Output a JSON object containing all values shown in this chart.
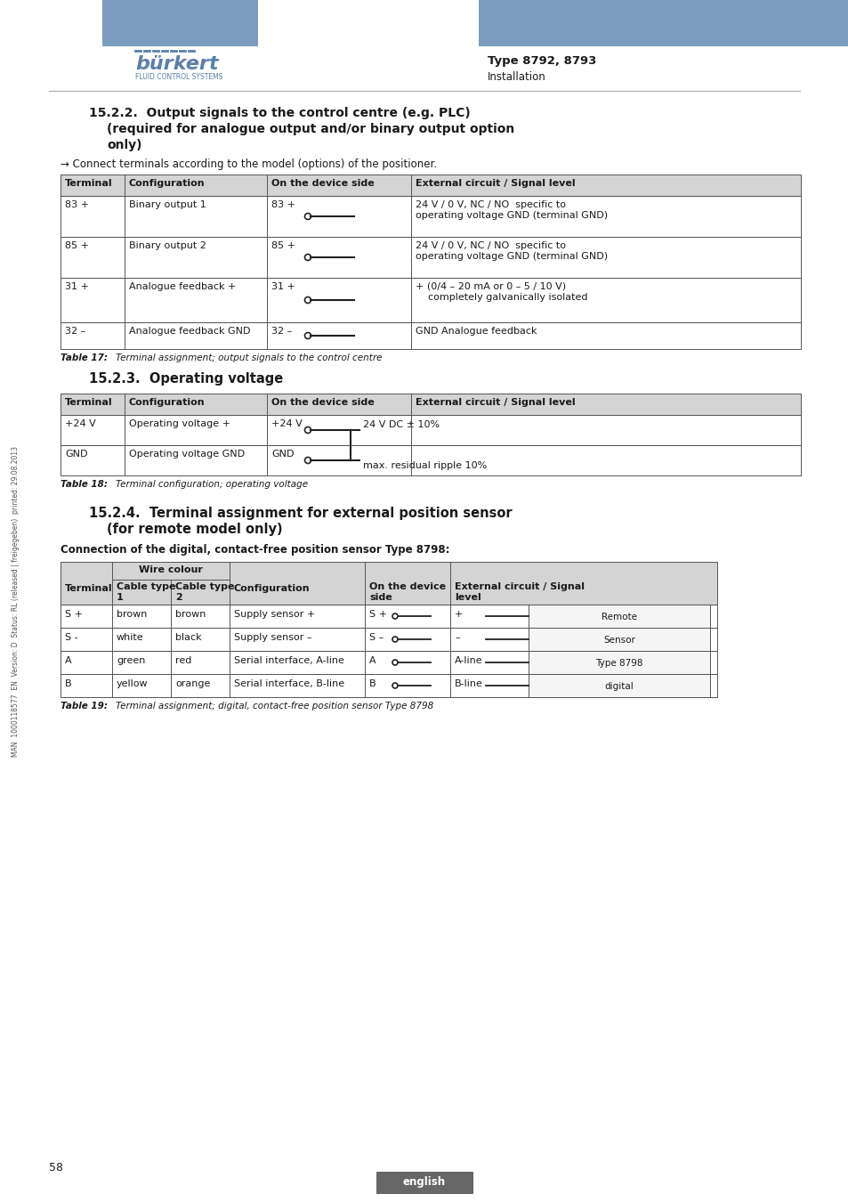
{
  "page_bg": "#ffffff",
  "header_bar_color": "#7b9cbf",
  "header_text_bold": "Type 8792, 8793",
  "header_text_light": "Installation",
  "burkert_blue": "#5b7faa",
  "table_header_bg": "#d4d4d4",
  "table_border": "#555555",
  "page_number": "58",
  "section_222_title_line1": "15.2.2.  Output signals to the control centre (e.g. PLC)",
  "section_222_title_line2": "(required for analogue output and/or binary output option",
  "section_222_title_line3": "only)",
  "section_222_note": "→ Connect terminals according to the model (options) of the positioner.",
  "table1_headers": [
    "Terminal",
    "Configuration",
    "On the device side",
    "External circuit / Signal level"
  ],
  "table1_rows": [
    [
      "83 +",
      "Binary output 1",
      "83 +",
      "24 V / 0 V, NC / NO  specific to\noperating voltage GND (terminal GND)"
    ],
    [
      "85 +",
      "Binary output 2",
      "85 +",
      "24 V / 0 V, NC / NO  specific to\noperating voltage GND (terminal GND)"
    ],
    [
      "31 +",
      "Analogue feedback +",
      "31 +",
      "+ (0/4 – 20 mA or 0 – 5 / 10 V)\n    completely galvanically isolated"
    ],
    [
      "32 –",
      "Analogue feedback GND",
      "32 –",
      "GND Analogue feedback"
    ]
  ],
  "table1_caption_label": "Table 17:",
  "table1_caption_text": "Terminal assignment; output signals to the control centre",
  "section_223_title": "15.2.3.  Operating voltage",
  "table2_headers": [
    "Terminal",
    "Configuration",
    "On the device side",
    "External circuit / Signal level"
  ],
  "table2_rows": [
    [
      "+24 V",
      "Operating voltage +",
      "+24 V"
    ],
    [
      "GND",
      "Operating voltage GND",
      "GND"
    ]
  ],
  "table2_ext_line1": "24 V DC ± 10%",
  "table2_ext_line2": "max. residual ripple 10%",
  "table2_caption_label": "Table 18:",
  "table2_caption_text": "Terminal configuration; operating voltage",
  "section_224_title_line1": "15.2.4.  Terminal assignment for external position sensor",
  "section_224_title_line2": "(for remote model only)",
  "section_224_sub": "Connection of the digital, contact-free position sensor Type 8798:",
  "table3_rows": [
    [
      "S +",
      "brown",
      "brown",
      "Supply sensor +",
      "S +",
      "+"
    ],
    [
      "S -",
      "white",
      "black",
      "Supply sensor –",
      "S –",
      "–"
    ],
    [
      "A",
      "green",
      "red",
      "Serial interface, A-line",
      "A",
      "A-line"
    ],
    [
      "B",
      "yellow",
      "orange",
      "Serial interface, B-line",
      "B",
      "B-line"
    ]
  ],
  "table3_right_lines": [
    "Remote",
    "Sensor",
    "Type 8798",
    "digital"
  ],
  "table3_caption_label": "Table 19:",
  "table3_caption_text": "Terminal assignment; digital, contact-free position sensor Type 8798",
  "side_text": "MAN  1000118577  EN  Version: D  Status: RL (released | freigegeben)  printed: 29.08.2013",
  "footer_text": "english"
}
